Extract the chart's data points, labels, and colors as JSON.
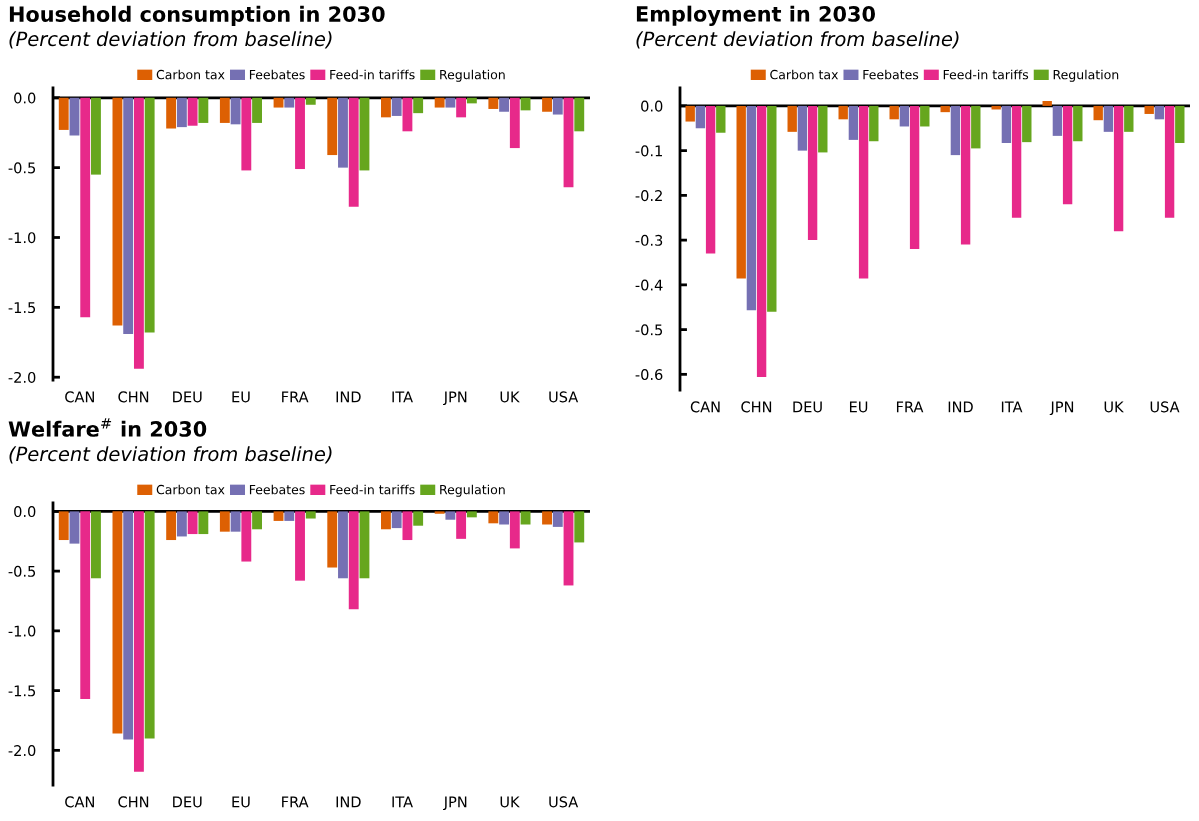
{
  "chart_data": [
    {
      "type": "bar",
      "title": "Household consumption in 2030",
      "subtitle": "(Percent deviation from baseline)",
      "categories": [
        "CAN",
        "CHN",
        "DEU",
        "EU",
        "FRA",
        "IND",
        "ITA",
        "JPN",
        "UK",
        "USA"
      ],
      "ylim": [
        -2.02,
        0.07
      ],
      "yticks": [
        {
          "value": 0,
          "label": "0.0"
        },
        -0.5,
        {
          "value": -1,
          "label": "-1.0"
        },
        -1.5,
        {
          "value": -2,
          "label": "-2.0"
        }
      ],
      "legend": "top",
      "ref_lines": [
        {
          "axis": "y",
          "value": 0,
          "color": "#000000"
        }
      ],
      "series": [
        {
          "name": "Carbon tax",
          "color": "#dd6003",
          "values": [
            -0.23,
            -1.63,
            -0.22,
            -0.18,
            -0.07,
            -0.41,
            -0.14,
            -0.07,
            -0.08,
            -0.1
          ]
        },
        {
          "name": "Feebates",
          "color": "#7570b3",
          "values": [
            -0.27,
            -1.69,
            -0.21,
            -0.19,
            -0.07,
            -0.5,
            -0.13,
            -0.07,
            -0.1,
            -0.12
          ]
        },
        {
          "name": "Feed-in tariffs",
          "color": "#e7298a",
          "values": [
            -1.57,
            -1.94,
            -0.2,
            -0.52,
            -0.51,
            -0.78,
            -0.24,
            -0.14,
            -0.36,
            -0.64
          ]
        },
        {
          "name": "Regulation",
          "color": "#66a61e",
          "values": [
            -0.55,
            -1.68,
            -0.18,
            -0.18,
            -0.05,
            -0.52,
            -0.11,
            -0.04,
            -0.09,
            -0.24
          ]
        }
      ]
    },
    {
      "type": "bar",
      "title": "Employment in 2030",
      "subtitle": "(Percent deviation from baseline)",
      "categories": [
        "CAN",
        "CHN",
        "DEU",
        "EU",
        "FRA",
        "IND",
        "ITA",
        "JPN",
        "UK",
        "USA"
      ],
      "ylim": [
        -0.635,
        0.04
      ],
      "yticks": [
        {
          "value": 0,
          "label": "0.0"
        },
        -0.1,
        -0.2,
        -0.3,
        -0.4,
        -0.5,
        -0.6
      ],
      "legend": "top",
      "ref_lines": [
        {
          "axis": "y",
          "value": 0,
          "color": "#000000"
        }
      ],
      "series": [
        {
          "name": "Carbon tax",
          "color": "#dd6003",
          "values": [
            -0.035,
            -0.386,
            -0.058,
            -0.03,
            -0.03,
            -0.014,
            -0.008,
            0.011,
            -0.032,
            -0.018
          ]
        },
        {
          "name": "Feebates",
          "color": "#7570b3",
          "values": [
            -0.05,
            -0.457,
            -0.1,
            -0.076,
            -0.046,
            -0.11,
            -0.083,
            -0.067,
            -0.058,
            -0.03
          ]
        },
        {
          "name": "Feed-in tariffs",
          "color": "#e7298a",
          "values": [
            -0.33,
            -0.606,
            -0.3,
            -0.386,
            -0.32,
            -0.31,
            -0.25,
            -0.22,
            -0.28,
            -0.25
          ]
        },
        {
          "name": "Regulation",
          "color": "#66a61e",
          "values": [
            -0.06,
            -0.46,
            -0.104,
            -0.079,
            -0.046,
            -0.095,
            -0.081,
            -0.079,
            -0.058,
            -0.083
          ]
        }
      ]
    },
    {
      "type": "bar",
      "title": "Welfare$^{#}$ in 2030",
      "subtitle": "(Percent deviation from baseline)",
      "categories": [
        "CAN",
        "CHN",
        "DEU",
        "EU",
        "FRA",
        "IND",
        "ITA",
        "JPN",
        "UK",
        "USA"
      ],
      "ylim": [
        -2.29,
        0.07
      ],
      "yticks": [
        {
          "value": 0,
          "label": "0.0"
        },
        -0.5,
        {
          "value": -1,
          "label": "-1.0"
        },
        -1.5,
        {
          "value": -2,
          "label": "-2.0"
        }
      ],
      "legend": "top",
      "ref_lines": [
        {
          "axis": "y",
          "value": 0,
          "color": "#000000"
        }
      ],
      "series": [
        {
          "name": "Carbon tax",
          "color": "#dd6003",
          "values": [
            -0.24,
            -1.86,
            -0.24,
            -0.17,
            -0.08,
            -0.47,
            -0.15,
            -0.02,
            -0.1,
            -0.11
          ]
        },
        {
          "name": "Feebates",
          "color": "#7570b3",
          "values": [
            -0.27,
            -1.91,
            -0.21,
            -0.17,
            -0.08,
            -0.56,
            -0.14,
            -0.07,
            -0.11,
            -0.13
          ]
        },
        {
          "name": "Feed-in tariffs",
          "color": "#e7298a",
          "values": [
            -1.57,
            -2.18,
            -0.19,
            -0.42,
            -0.58,
            -0.82,
            -0.24,
            -0.23,
            -0.31,
            -0.62
          ]
        },
        {
          "name": "Regulation",
          "color": "#66a61e",
          "values": [
            -0.56,
            -1.9,
            -0.19,
            -0.15,
            -0.06,
            -0.56,
            -0.12,
            -0.05,
            -0.11,
            -0.26
          ]
        }
      ]
    }
  ]
}
